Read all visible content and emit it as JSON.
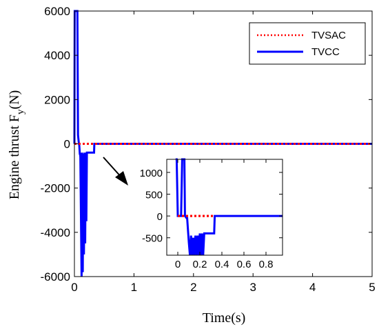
{
  "chart_data": [
    {
      "type": "line",
      "xlabel": "Time(s)",
      "ylabel_main": "Engine thrust F",
      "ylabel_sub": "y",
      "ylabel_unit": "(N)",
      "xlim": [
        0,
        5
      ],
      "ylim": [
        -6000,
        6000
      ],
      "xticks": [
        "0",
        "1",
        "2",
        "3",
        "4",
        "5"
      ],
      "yticks": [
        "-6000",
        "-4000",
        "-2000",
        "0",
        "2000",
        "4000",
        "6000"
      ],
      "grid": false,
      "legend_position": "top-right",
      "series": [
        {
          "name": "TVSAC",
          "color": "#ff0000",
          "style": "dotted",
          "x": [
            0,
            0.05,
            0.1,
            0.2,
            0.3,
            0.5,
            1,
            2,
            3,
            4,
            5
          ],
          "y": [
            0,
            0,
            0,
            0,
            0,
            0,
            0,
            0,
            0,
            0,
            0
          ]
        },
        {
          "name": "TVCC",
          "color": "#0000ff",
          "style": "solid",
          "x": [
            0,
            0.005,
            0.01,
            0.05,
            0.06,
            0.075,
            0.08,
            0.09,
            0.095,
            0.1,
            0.12,
            0.13,
            0.14,
            0.15,
            0.16,
            0.17,
            0.18,
            0.19,
            0.2,
            0.21,
            0.22,
            0.23,
            0.24,
            0.25,
            0.26,
            0.27,
            0.33,
            0.335,
            0.5,
            1,
            2,
            3,
            4,
            5
          ],
          "y": [
            0,
            6000,
            6000,
            6000,
            400,
            0,
            0,
            -450,
            -450,
            -600,
            -6000,
            -400,
            -5800,
            -450,
            -5000,
            -400,
            -4500,
            -400,
            -3500,
            -400,
            -400,
            -400,
            -400,
            -400,
            -400,
            -400,
            -400,
            0,
            0,
            0,
            0,
            0,
            0,
            0
          ]
        }
      ]
    },
    {
      "type": "line",
      "role": "inset",
      "xlim": [
        -0.1,
        0.95
      ],
      "ylim": [
        -900,
        1300
      ],
      "xticks": [
        "0",
        "0.2",
        "0.4",
        "0.6",
        "0.8"
      ],
      "yticks": [
        "-500",
        "0",
        "500",
        "1000"
      ],
      "series": [
        {
          "name": "TVSAC",
          "x": [
            0,
            0.1,
            0.2,
            0.3,
            0.33
          ],
          "y": [
            0,
            0,
            0,
            0,
            0
          ]
        },
        {
          "name": "TVCC",
          "x": [
            -0.02,
            -0.01,
            0.0,
            0.03,
            0.04,
            0.06,
            0.065,
            0.08,
            0.085,
            0.1,
            0.11,
            0.12,
            0.13,
            0.14,
            0.15,
            0.16,
            0.17,
            0.18,
            0.19,
            0.2,
            0.21,
            0.22,
            0.23,
            0.24,
            0.33,
            0.335,
            0.95
          ],
          "y": [
            1300,
            1300,
            0,
            0,
            1300,
            1300,
            0,
            -50,
            -50,
            -600,
            -900,
            -450,
            -900,
            -500,
            -900,
            -450,
            -900,
            -450,
            -900,
            -400,
            -900,
            -400,
            -900,
            -400,
            -400,
            0,
            0
          ]
        }
      ]
    }
  ]
}
